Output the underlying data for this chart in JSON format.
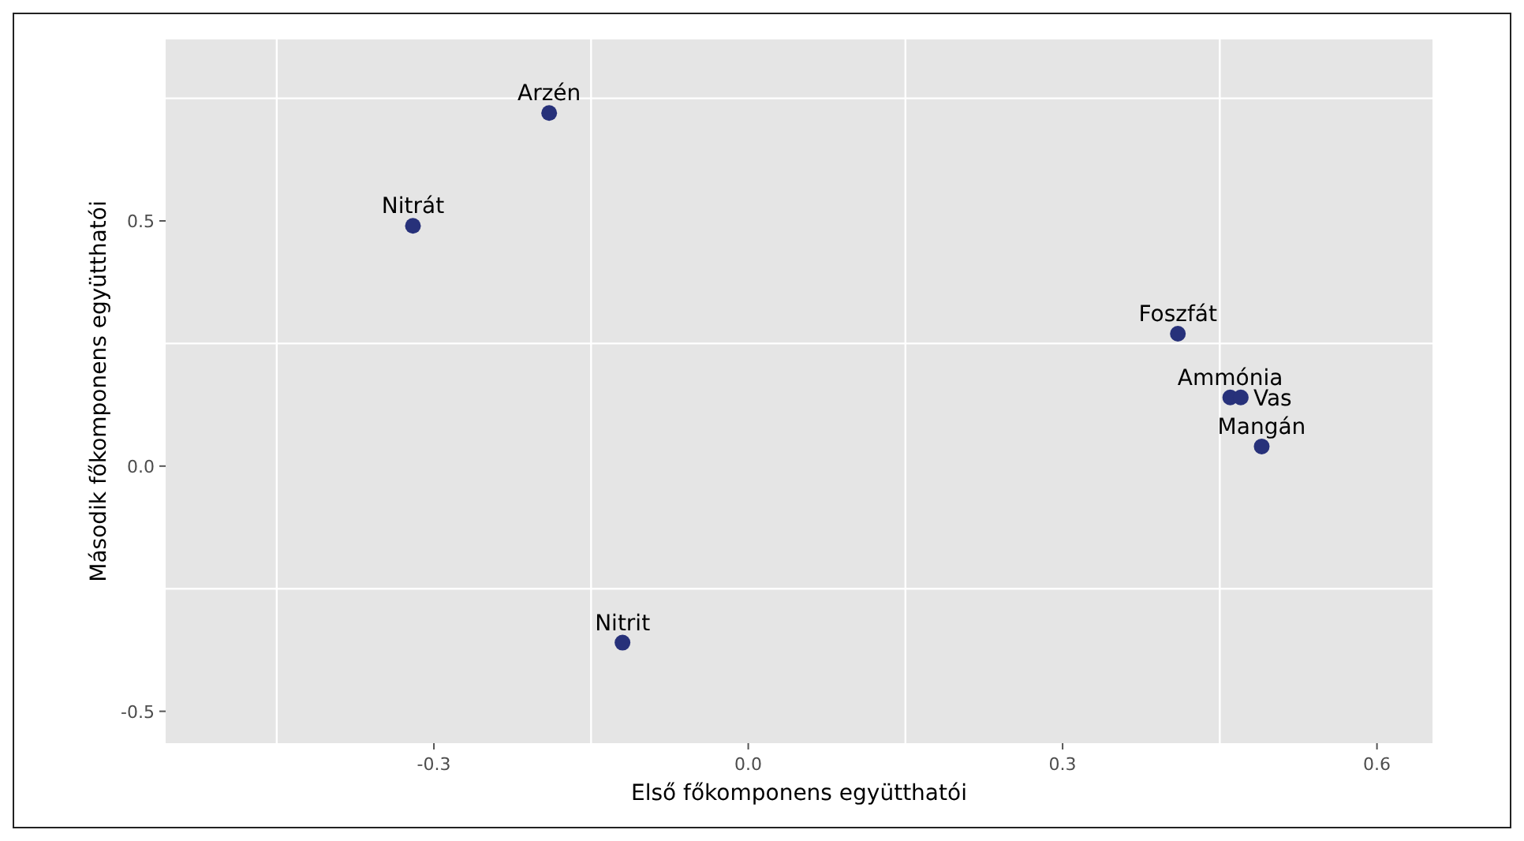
{
  "chart_data": {
    "type": "scatter",
    "xlabel": "Első főkomponens együtthatói",
    "ylabel": "Második főkomponens együtthatói",
    "xlim": [
      -0.556,
      0.653
    ],
    "xticks": [
      -0.3,
      {
        "value": 0,
        "label": "0.0"
      },
      0.3,
      0.6
    ],
    "ylim": [
      -0.565,
      0.87
    ],
    "yticks": [
      -0.5,
      {
        "value": 0,
        "label": "0.0"
      },
      0.5
    ],
    "grid": true,
    "marker": "circle",
    "series": [
      {
        "name": "Arzén",
        "color": "#27317a",
        "x": [
          -0.19
        ],
        "values": [
          0.72
        ]
      },
      {
        "name": "Nitrát",
        "color": "#27317a",
        "x": [
          -0.32
        ],
        "values": [
          0.49
        ]
      },
      {
        "name": "Nitrit",
        "color": "#27317a",
        "x": [
          -0.12
        ],
        "values": [
          -0.36
        ]
      },
      {
        "name": "Foszfát",
        "color": "#27317a",
        "x": [
          0.41
        ],
        "values": [
          0.27
        ]
      },
      {
        "name": "Ammónia",
        "color": "#27317a",
        "x": [
          0.46
        ],
        "values": [
          0.14
        ]
      },
      {
        "name": "Vas",
        "color": "#27317a",
        "x": [
          0.47
        ],
        "values": [
          0.14
        ]
      },
      {
        "name": "Mangán",
        "color": "#27317a",
        "x": [
          0.49
        ],
        "values": [
          0.04
        ]
      }
    ]
  }
}
